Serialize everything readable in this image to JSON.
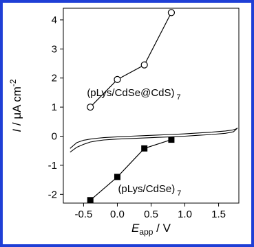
{
  "chart_data": {
    "type": "line",
    "xlabel": "E",
    "xlabel_sub": "app",
    "xlabel_unit": " / V",
    "ylabel": "I",
    "ylabel_unit": " / μA cm",
    "ylabel_sup": "-2",
    "xlim": [
      -0.8,
      1.8
    ],
    "ylim": [
      -2.3,
      4.4
    ],
    "x_ticks": [
      -0.5,
      0.0,
      0.5,
      1.0,
      1.5
    ],
    "x_tick_labels": [
      "-0.5",
      "0.0",
      "0.5",
      "1.0",
      "1.5"
    ],
    "y_ticks": [
      -2,
      -1,
      0,
      1,
      2,
      3,
      4
    ],
    "y_tick_labels": [
      "-2",
      "-1",
      "0",
      "1",
      "2",
      "3",
      "4"
    ],
    "series": [
      {
        "marker": "open-circle",
        "x": [
          -0.4,
          0.0,
          0.4,
          0.8
        ],
        "y": [
          1.0,
          1.95,
          2.45,
          4.25
        ]
      },
      {
        "marker": "filled-square",
        "x": [
          -0.4,
          0.0,
          0.4,
          0.8
        ],
        "y": [
          -2.2,
          -1.4,
          -0.42,
          -0.12
        ]
      }
    ],
    "cv_curve": {
      "upper_x": [
        -0.7,
        -0.6,
        -0.5,
        -0.4,
        -0.3,
        -0.2,
        0.0,
        0.2,
        0.4,
        0.6,
        0.8,
        1.0,
        1.2,
        1.4,
        1.6,
        1.7,
        1.75,
        1.78
      ],
      "upper_y": [
        -0.42,
        -0.22,
        -0.14,
        -0.1,
        -0.07,
        -0.05,
        -0.02,
        0.0,
        0.02,
        0.04,
        0.06,
        0.08,
        0.11,
        0.14,
        0.18,
        0.21,
        0.24,
        0.28
      ],
      "lower_x": [
        1.78,
        1.72,
        1.6,
        1.4,
        1.2,
        1.0,
        0.8,
        0.6,
        0.4,
        0.2,
        0.0,
        -0.2,
        -0.3,
        -0.4,
        -0.5,
        -0.6,
        -0.7
      ],
      "lower_y": [
        0.28,
        0.15,
        0.1,
        0.06,
        0.03,
        0.0,
        -0.02,
        -0.04,
        -0.06,
        -0.08,
        -0.1,
        -0.13,
        -0.16,
        -0.2,
        -0.28,
        -0.38,
        -0.55
      ]
    },
    "annotations": [
      {
        "text": "(pLys/CdSe@CdS)",
        "sub": "7",
        "x": -0.45,
        "y": 1.5
      },
      {
        "text": "(pLys/CdSe)",
        "sub": "7",
        "x": 0.01,
        "y": -1.8
      }
    ],
    "grid": false,
    "legend": "none"
  },
  "colors": {
    "frame": "#1f3fd6",
    "line": "#000000"
  }
}
